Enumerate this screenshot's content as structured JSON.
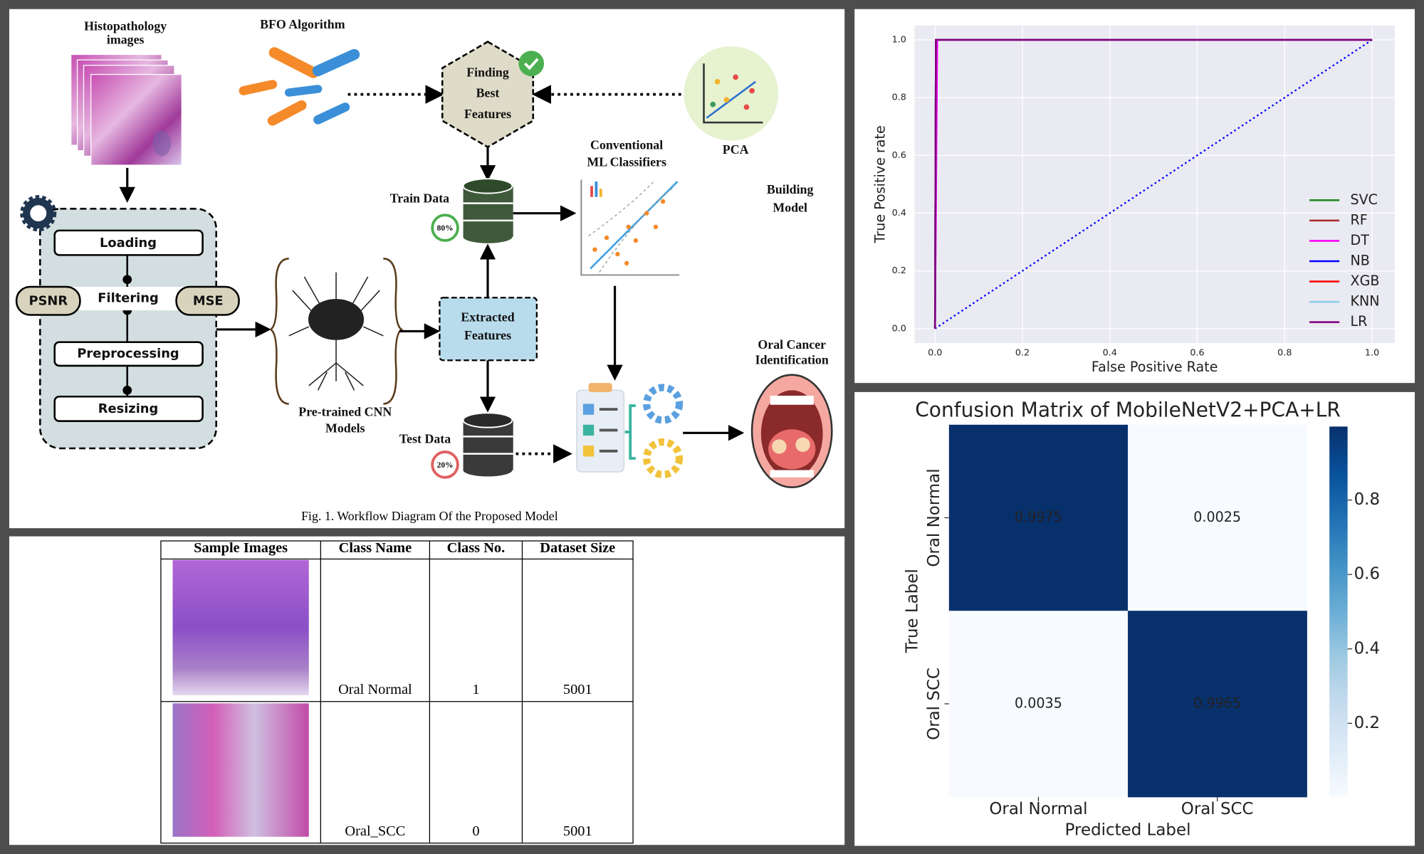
{
  "diagram": {
    "histopathology": [
      "Histopathology",
      "images"
    ],
    "bfo": "BFO Algorithm",
    "best_features": [
      "Finding",
      "Best",
      "Features"
    ],
    "pca": "PCA",
    "classifiers": [
      "Conventional",
      "ML Classifiers"
    ],
    "building": [
      "Building",
      "Model"
    ],
    "train": "Train Data",
    "train_split": "80%",
    "test": "Test Data",
    "test_split": "20%",
    "steps": [
      "Loading",
      "Filtering",
      "Preprocessing",
      "Resizing"
    ],
    "psnr": "PSNR",
    "mse": "MSE",
    "cnn": [
      "Pre-trained CNN",
      "Models"
    ],
    "extracted": [
      "Extracted",
      "Features"
    ],
    "output": [
      "Oral Cancer",
      "Identification"
    ],
    "caption": "Fig. 1. Workflow Diagram Of the Proposed Model"
  },
  "table": {
    "header": [
      "Sample Images",
      "Class Name",
      "Class No.",
      "Dataset Size"
    ],
    "rows": [
      [
        "Oral Normal",
        1,
        5001
      ],
      [
        "Oral_SCC",
        0,
        5001
      ]
    ]
  },
  "chart_data": [
    {
      "type": "line",
      "xlabel": "False Positive Rate",
      "ylabel": "True Positive rate",
      "xlim": [
        -0.047,
        1.052
      ],
      "ylim": [
        -0.05,
        1.05
      ],
      "xticks": [
        {
          "value": 0,
          "label": "0.0"
        },
        0.2,
        0.4,
        0.6,
        0.8,
        {
          "value": 1,
          "label": "1.0"
        }
      ],
      "yticks": [
        {
          "value": 0,
          "label": "0.0"
        },
        0.2,
        0.4,
        0.6,
        0.8,
        {
          "value": 1,
          "label": "1.0"
        }
      ],
      "grid": true,
      "legend": "lower right",
      "series": [
        {
          "name": "SVC",
          "color": "#228b22",
          "x": [
            0,
            0.002,
            1
          ],
          "values": [
            0,
            1,
            1
          ]
        },
        {
          "name": "RF",
          "color": "#a52a2a",
          "x": [
            0,
            0.002,
            1
          ],
          "values": [
            0,
            1,
            1
          ]
        },
        {
          "name": "DT",
          "color": "#ff00ff",
          "x": [
            0,
            0.005,
            1
          ],
          "values": [
            0,
            1,
            1
          ]
        },
        {
          "name": "NB",
          "color": "#0000ff",
          "x": [
            0,
            0.002,
            1
          ],
          "values": [
            0,
            1,
            1
          ]
        },
        {
          "name": "XGB",
          "color": "#ff0000",
          "x": [
            0,
            0.002,
            1
          ],
          "values": [
            0,
            1,
            1
          ]
        },
        {
          "name": "KNN",
          "color": "#87ceeb",
          "x": [
            0,
            0.002,
            1
          ],
          "values": [
            0,
            1,
            1
          ]
        },
        {
          "name": "LR",
          "color": "#800080",
          "x": [
            0,
            0.002,
            1
          ],
          "values": [
            0,
            1,
            1
          ]
        }
      ],
      "diagonal": {
        "color": "#0000ff",
        "x": [
          0,
          1
        ],
        "values": [
          0,
          1
        ]
      }
    },
    {
      "type": "heatmap",
      "title": "Confusion Matrix of MobileNetV2+PCA+LR",
      "xlabel": "Predicted Label",
      "ylabel": "True Label",
      "x_categories": [
        "Oral Normal",
        "Oral SCC"
      ],
      "y_categories": [
        "Oral Normal",
        "Oral SCC"
      ],
      "values": [
        [
          0.9975,
          0.0025
        ],
        [
          0.0035,
          0.9965
        ]
      ],
      "colormap": "Blues",
      "clim": [
        0.0025,
        0.9975
      ],
      "cticks": [
        0.2,
        0.4,
        0.6,
        0.8
      ]
    }
  ]
}
